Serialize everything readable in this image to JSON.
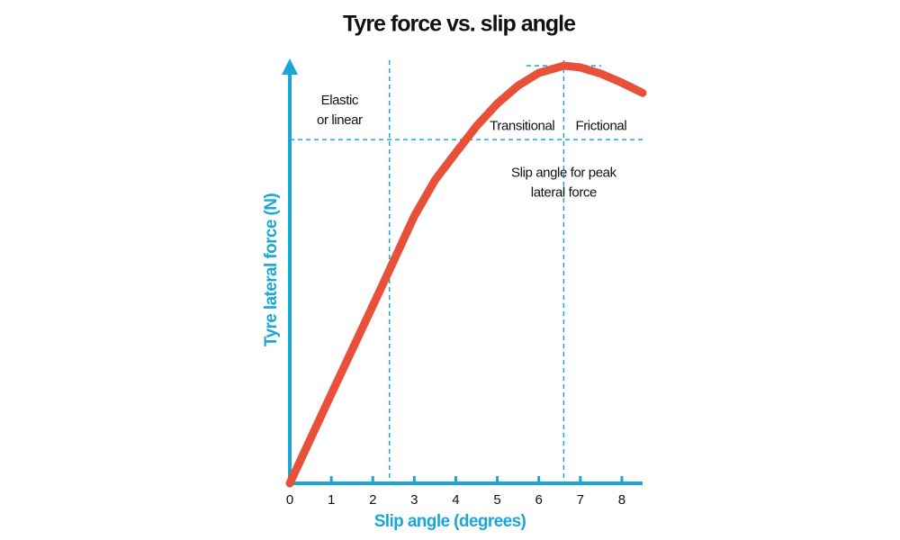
{
  "chart_data": {
    "type": "line",
    "title": "Tyre force vs. slip angle",
    "x_label": "Slip angle (degrees)",
    "y_label": "Tyre lateral force (N)",
    "xlim": [
      0,
      8.5
    ],
    "ylim": [
      0,
      100
    ],
    "xticks": [
      0,
      1,
      2,
      3,
      4,
      5,
      6,
      7,
      8
    ],
    "series": [
      {
        "color": "#e8503a",
        "x": [
          0,
          0.5,
          1,
          1.5,
          2,
          2.4,
          3,
          3.5,
          4,
          4.5,
          5,
          5.5,
          6,
          6.6,
          7,
          7.5,
          8,
          8.5
        ],
        "values": [
          0,
          10.5,
          21,
          31.4,
          41.8,
          50.2,
          62.9,
          71.4,
          77.8,
          84.1,
          89.4,
          93.6,
          96.6,
          98.3,
          97.9,
          96.4,
          94.3,
          91.9
        ]
      }
    ],
    "axis_color": "#1aa7d8",
    "vlines": [
      2.4,
      6.6
    ],
    "hlines": [
      80.9
    ],
    "peak_line": {
      "y": 98.3,
      "x": [
        5.7,
        7.5
      ]
    },
    "annotations": [
      {
        "lines": [
          "Elastic",
          "or linear"
        ],
        "x": 1.2,
        "y": 90
      },
      {
        "lines": [
          "Transitional"
        ],
        "x": 5.6,
        "y": 84
      },
      {
        "lines": [
          "Frictional"
        ],
        "x": 7.5,
        "y": 84
      },
      {
        "lines": [
          "Slip angle for peak",
          "lateral force"
        ],
        "x": 6.6,
        "y": 73
      }
    ]
  }
}
